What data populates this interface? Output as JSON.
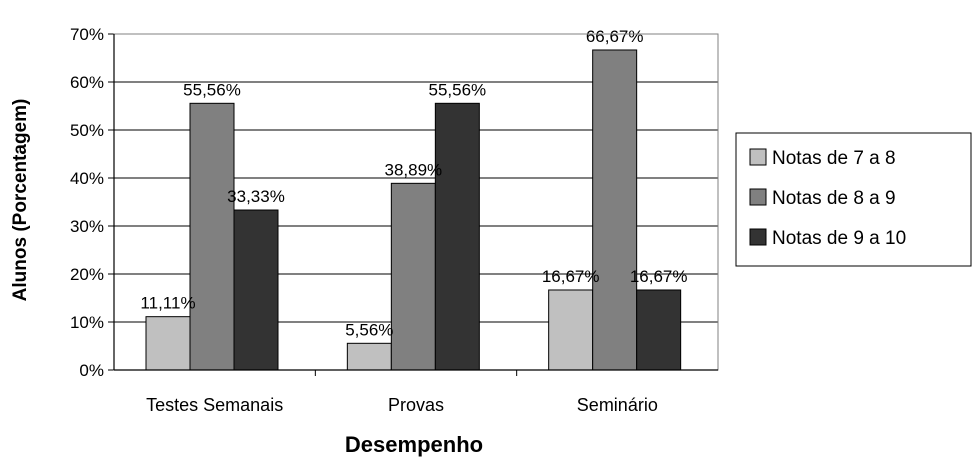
{
  "chart_data": {
    "type": "bar",
    "categories": [
      "Testes Semanais",
      "Provas",
      "Seminário"
    ],
    "series": [
      {
        "name": "Notas de 7 a 8",
        "values": [
          11.11,
          5.56,
          16.67
        ],
        "labels": [
          "11,11%",
          "5,56%",
          "16,67%"
        ],
        "color": "#c0c0c0"
      },
      {
        "name": "Notas de 8 a 9",
        "values": [
          55.56,
          38.89,
          66.67
        ],
        "labels": [
          "55,56%",
          "38,89%",
          "66,67%"
        ],
        "color": "#808080"
      },
      {
        "name": "Notas de 9 a 10",
        "values": [
          33.33,
          55.56,
          16.67
        ],
        "labels": [
          "33,33%",
          "55,56%",
          "16,67%"
        ],
        "color": "#333333"
      }
    ],
    "xlabel": "Desempenho",
    "ylabel": "Alunos (Porcentagem)",
    "ylim": [
      0,
      70
    ],
    "yticks": [
      0,
      10,
      20,
      30,
      40,
      50,
      60,
      70
    ],
    "ytick_labels": [
      "0%",
      "10%",
      "20%",
      "30%",
      "40%",
      "50%",
      "60%",
      "70%"
    ],
    "grid": true,
    "legend_position": "right"
  }
}
